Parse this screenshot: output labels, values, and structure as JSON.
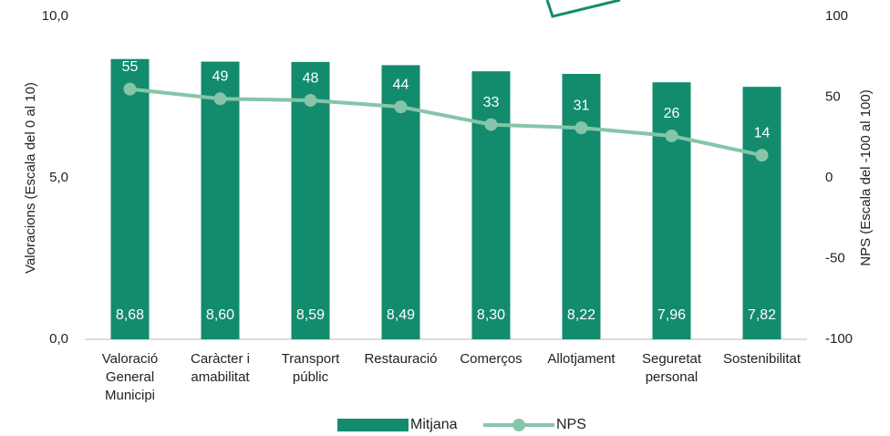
{
  "chart_data": {
    "type": "bar-line",
    "categories": [
      "Valoració\nGeneral\nMunicipi",
      "Caràcter i\namabilitat",
      "Transport\npúblic",
      "Restauració",
      "Comerços",
      "Allotjament",
      "Seguretat\npersonal",
      "Sostenibilitat"
    ],
    "y_label": "Valoracions (Escala  del 0 al 10)",
    "y2_label": "NPS (Escala  del -100 al 100)",
    "ylim": [
      0,
      10
    ],
    "yticks": [
      {
        "value": 0,
        "label": "0,0"
      },
      {
        "value": 5,
        "label": "5,0"
      },
      {
        "value": 10,
        "label": "10,0"
      }
    ],
    "y2lim": [
      -100,
      100
    ],
    "y2ticks": [
      100,
      50,
      0,
      -50,
      -100
    ],
    "series": [
      {
        "name": "Mitjana",
        "type": "bar",
        "color": "#138b6d",
        "values": [
          8.68,
          8.6,
          8.59,
          8.49,
          8.3,
          8.22,
          7.96,
          7.82
        ],
        "value_labels": [
          "8,68",
          "8,60",
          "8,59",
          "8,49",
          "8,30",
          "8,22",
          "7,96",
          "7,82"
        ]
      },
      {
        "name": "NPS",
        "type": "line",
        "axis": "y2",
        "color": "#86c5a8",
        "values": [
          55,
          49,
          48,
          44,
          33,
          31,
          26,
          14
        ]
      }
    ],
    "legend": "bottom"
  }
}
